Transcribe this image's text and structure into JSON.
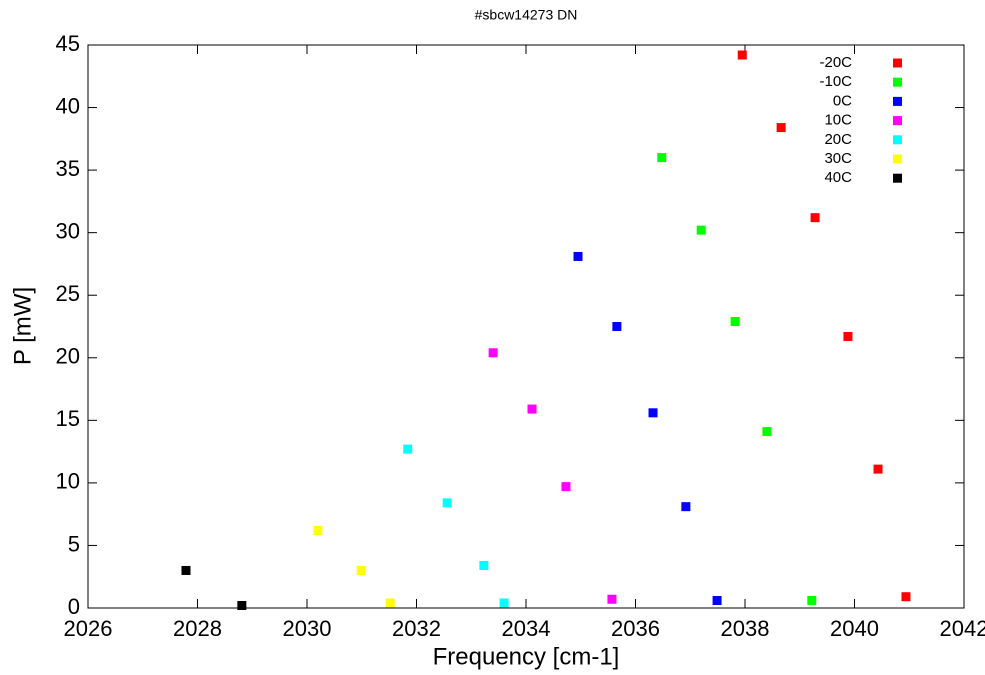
{
  "chart_data": {
    "type": "scatter",
    "title": "#sbcw14273 DN",
    "x_label": "Frequency [cm-1]",
    "y_label": "P [mW]",
    "xlim": [
      2026,
      2042
    ],
    "xticks": [
      2026,
      2028,
      2030,
      2032,
      2034,
      2036,
      2038,
      2040,
      2042
    ],
    "ylim": [
      0,
      45
    ],
    "yticks": [
      0,
      5,
      10,
      15,
      20,
      25,
      30,
      35,
      40,
      45
    ],
    "legend": "top-right",
    "series": [
      {
        "name": "-20C",
        "color": "#ff0000",
        "x": [
          2037.95,
          2038.66,
          2039.28,
          2039.88,
          2040.43,
          2040.94
        ],
        "values": [
          44.2,
          38.4,
          31.2,
          21.7,
          11.1,
          0.9
        ]
      },
      {
        "name": "-10C",
        "color": "#00ff00",
        "x": [
          2036.48,
          2037.2,
          2037.82,
          2038.4,
          2039.22
        ],
        "values": [
          36.0,
          30.2,
          22.9,
          14.1,
          0.6
        ]
      },
      {
        "name": "0C",
        "color": "#0000ff",
        "x": [
          2034.95,
          2035.66,
          2036.32,
          2036.92,
          2037.49
        ],
        "values": [
          28.1,
          22.5,
          15.6,
          8.1,
          0.6
        ]
      },
      {
        "name": "10C",
        "color": "#ff00ff",
        "x": [
          2033.4,
          2034.11,
          2034.73,
          2035.57
        ],
        "values": [
          20.4,
          15.9,
          9.7,
          0.7
        ]
      },
      {
        "name": "20C",
        "color": "#00ffff",
        "x": [
          2031.84,
          2032.56,
          2033.23,
          2033.6
        ],
        "values": [
          12.7,
          8.4,
          3.4,
          0.4
        ]
      },
      {
        "name": "30C",
        "color": "#ffff00",
        "x": [
          2030.2,
          2030.99,
          2031.52
        ],
        "values": [
          6.2,
          3.0,
          0.4
        ]
      },
      {
        "name": "40C",
        "color": "#000000",
        "x": [
          2027.79,
          2028.81
        ],
        "values": [
          3.0,
          0.2
        ]
      }
    ]
  }
}
